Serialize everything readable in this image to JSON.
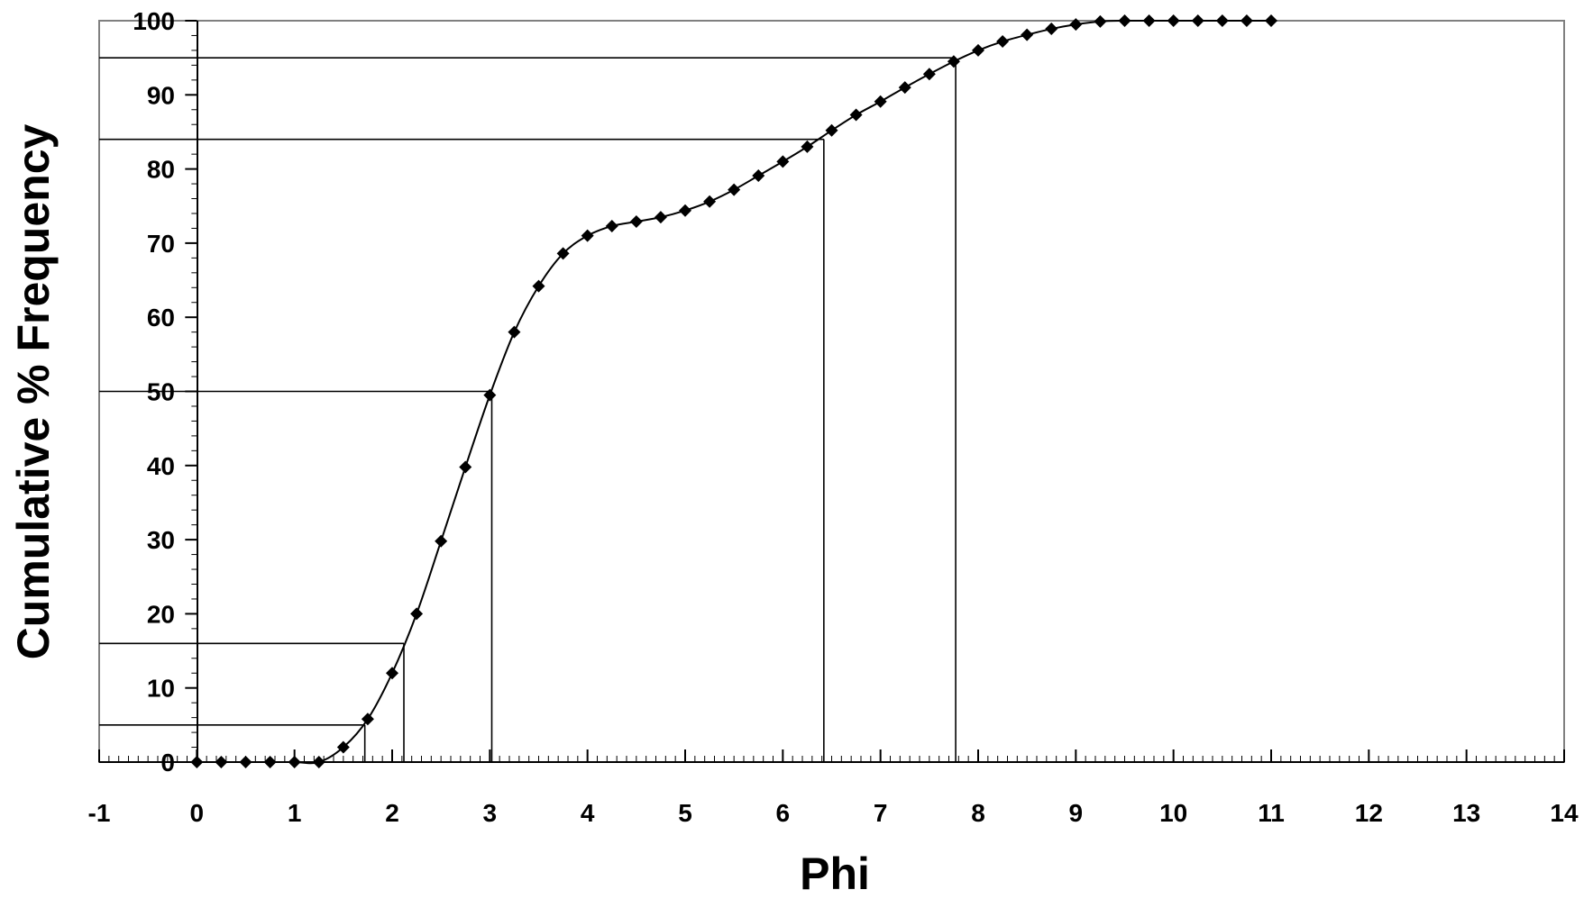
{
  "chart_data": {
    "type": "line",
    "title": "",
    "xlabel": "Phi",
    "ylabel": "Cumulative % Frequency",
    "xlim": [
      -1,
      14
    ],
    "ylim": [
      0,
      100
    ],
    "x_ticks": [
      "-1",
      "0",
      "1",
      "2",
      "3",
      "4",
      "5",
      "6",
      "7",
      "8",
      "9",
      "10",
      "11",
      "12",
      "13",
      "14"
    ],
    "y_ticks": [
      "0",
      "10",
      "20",
      "30",
      "40",
      "50",
      "60",
      "70",
      "80",
      "90",
      "100"
    ],
    "grid": false,
    "legend": "none",
    "marker": "diamond",
    "line_color": "#000000",
    "series": [
      {
        "x": [
          0,
          0.25,
          0.5,
          0.75,
          1,
          1.25,
          1.5,
          1.75,
          2,
          2.25,
          2.5,
          2.75,
          3,
          3.25,
          3.5,
          3.75,
          4,
          4.25,
          4.5,
          4.75,
          5,
          5.25,
          5.5,
          5.75,
          6,
          6.25,
          6.5,
          6.75,
          7,
          7.25,
          7.5,
          7.75,
          8,
          8.25,
          8.5,
          8.75,
          9,
          9.25,
          9.5,
          9.75,
          10,
          10.25,
          10.5,
          10.75,
          11
        ],
        "y": [
          0,
          0,
          0,
          0,
          0,
          0,
          2,
          5.8,
          12,
          20,
          29.8,
          39.8,
          49.5,
          58,
          64.2,
          68.6,
          71,
          72.3,
          72.9,
          73.5,
          74.4,
          75.6,
          77.2,
          79.1,
          81,
          83,
          85.2,
          87.3,
          89.1,
          91,
          92.8,
          94.5,
          96,
          97.2,
          98.1,
          98.9,
          99.5,
          99.9,
          100,
          100,
          100,
          100,
          100,
          100,
          100
        ]
      }
    ],
    "percentile_lines": [
      {
        "percent": 5,
        "phi": 1.72
      },
      {
        "percent": 16,
        "phi": 2.12
      },
      {
        "percent": 50,
        "phi": 3.02
      },
      {
        "percent": 84,
        "phi": 6.42
      },
      {
        "percent": 95,
        "phi": 7.77
      }
    ]
  }
}
